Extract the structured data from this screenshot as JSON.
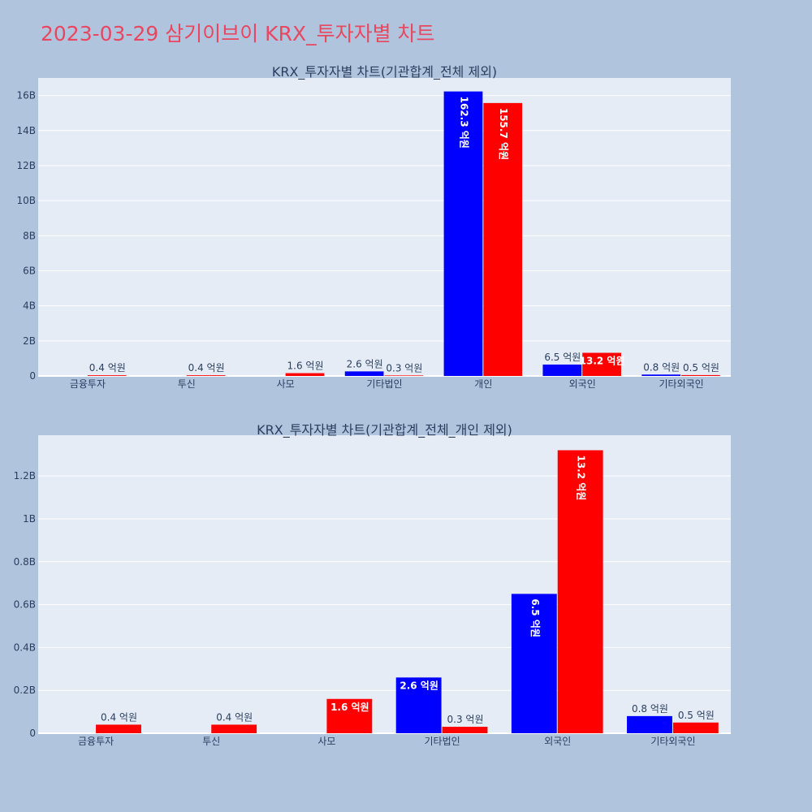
{
  "page": {
    "title": "2023-03-29 삼기이브이 KRX_투자자별 차트"
  },
  "colors": {
    "background": "#b0c4de",
    "plot_bg": "#e5ecf6",
    "grid": "#ffffff",
    "title": "#e8475f",
    "text": "#2a3f5f",
    "buy": "#0000ff",
    "sell": "#ff0000"
  },
  "chart_data": [
    {
      "type": "bar",
      "title": "KRX_투자자별 차트(기관합계_전체 제외)",
      "categories": [
        "금융투자",
        "투신",
        "사모",
        "기타법인",
        "개인",
        "외국인",
        "기타외국인"
      ],
      "series": [
        {
          "color": "#0000ff",
          "values": [
            0,
            0,
            0,
            260000000,
            16230000000,
            650000000,
            80000000
          ],
          "labels": [
            "",
            "",
            "",
            "2.6 억원",
            "162.3 억원",
            "6.5 억원",
            "0.8 억원"
          ]
        },
        {
          "color": "#ff0000",
          "values": [
            40000000,
            40000000,
            160000000,
            30000000,
            15570000000,
            1320000000,
            50000000
          ],
          "labels": [
            "0.4 억원",
            "0.4 억원",
            "1.6 억원",
            "0.3 억원",
            "155.7 억원",
            "13.2 억원",
            "0.5 억원"
          ]
        }
      ],
      "ylim": [
        0,
        17000000000
      ],
      "yticks": [
        0,
        2000000000,
        4000000000,
        6000000000,
        8000000000,
        10000000000,
        12000000000,
        14000000000,
        16000000000
      ],
      "ytick_labels": [
        "0",
        "2B",
        "4B",
        "6B",
        "8B",
        "10B",
        "12B",
        "14B",
        "16B"
      ],
      "grid": true
    },
    {
      "type": "bar",
      "title": "KRX_투자자별 차트(기관합계_전체_개인 제외)",
      "categories": [
        "금융투자",
        "투신",
        "사모",
        "기타법인",
        "외국인",
        "기타외국인"
      ],
      "series": [
        {
          "color": "#0000ff",
          "values": [
            0,
            0,
            0,
            260000000,
            650000000,
            80000000
          ],
          "labels": [
            "",
            "",
            "",
            "2.6 억원",
            "6.5 억원",
            "0.8 억원"
          ]
        },
        {
          "color": "#ff0000",
          "values": [
            40000000,
            40000000,
            160000000,
            30000000,
            1320000000,
            50000000
          ],
          "labels": [
            "0.4 억원",
            "0.4 억원",
            "1.6 억원",
            "0.3 억원",
            "13.2 억원",
            "0.5 억원"
          ]
        }
      ],
      "ylim": [
        0,
        1390000000
      ],
      "yticks": [
        0,
        200000000,
        400000000,
        600000000,
        800000000,
        1000000000,
        1200000000
      ],
      "ytick_labels": [
        "0",
        "0.2B",
        "0.4B",
        "0.6B",
        "0.8B",
        "1B",
        "1.2B"
      ],
      "grid": true
    }
  ]
}
